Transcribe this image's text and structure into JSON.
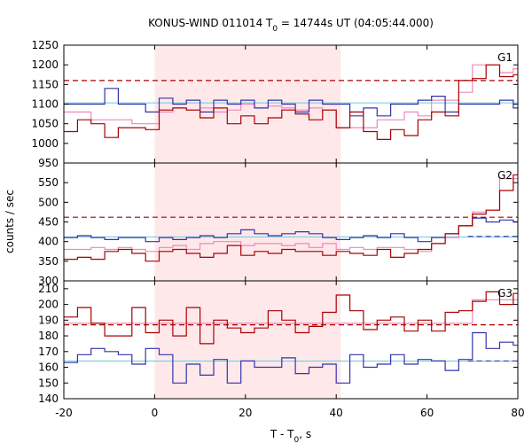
{
  "chart_data": {
    "type": "line",
    "title": "KONUS-WIND 011014 T",
    "title_sub": "0",
    "title_rest": " = 14744s UT (04:05:44.000)",
    "xlabel": "T - T",
    "xlabel_sub": "0",
    "xlabel_rest": ", s",
    "ylabel": "counts / sec",
    "xlim": [
      -20,
      80
    ],
    "xticks": [
      "-20",
      "0",
      "20",
      "40",
      "60",
      "80"
    ],
    "xtick_values": [
      -20,
      0,
      20,
      40,
      60,
      80
    ],
    "shaded_interval": [
      0,
      41
    ],
    "colors": {
      "shade": "#ffe8ea",
      "red": "#aa0000",
      "blue": "#3333aa",
      "pink": "#ee88bb",
      "cyan": "#66ccdd"
    },
    "panels": [
      {
        "label": "G1",
        "ylim": [
          950,
          1250
        ],
        "yticks": [
          950,
          1000,
          1050,
          1100,
          1150,
          1200,
          1250
        ],
        "red_level": 1160,
        "cyan_level": 1103,
        "x": [
          -20,
          -17,
          -14,
          -11,
          -8,
          -5,
          -2,
          1,
          4,
          7,
          10,
          13,
          16,
          19,
          22,
          25,
          28,
          31,
          34,
          37,
          40,
          43,
          46,
          49,
          52,
          55,
          58,
          61,
          64,
          67,
          70,
          73,
          76,
          79
        ],
        "red": [
          1030,
          1060,
          1050,
          1015,
          1040,
          1040,
          1035,
          1085,
          1090,
          1085,
          1065,
          1090,
          1050,
          1070,
          1050,
          1065,
          1085,
          1075,
          1060,
          1085,
          1040,
          1080,
          1030,
          1010,
          1035,
          1020,
          1060,
          1080,
          1070,
          1160,
          1165,
          1200,
          1170,
          1175
        ],
        "blue": [
          1100,
          1100,
          1100,
          1140,
          1100,
          1100,
          1080,
          1115,
          1100,
          1110,
          1080,
          1110,
          1100,
          1110,
          1090,
          1110,
          1100,
          1080,
          1110,
          1100,
          1100,
          1070,
          1090,
          1070,
          1100,
          1100,
          1110,
          1120,
          1080,
          1100,
          1100,
          1100,
          1110,
          1090
        ],
        "pink": [
          1080,
          1080,
          1060,
          1060,
          1060,
          1050,
          1050,
          1080,
          1090,
          1085,
          1090,
          1080,
          1085,
          1100,
          1090,
          1095,
          1090,
          1085,
          1090,
          1085,
          1040,
          1040,
          1040,
          1060,
          1060,
          1080,
          1070,
          1110,
          1110,
          1130,
          1200,
          1200,
          1180,
          1190
        ]
      },
      {
        "label": "G2",
        "ylim": [
          300,
          600
        ],
        "yticks": [
          300,
          350,
          400,
          450,
          500,
          550
        ],
        "red_level": 462,
        "blue_level": 413,
        "cyan_level": 412,
        "x": [
          -20,
          -17,
          -14,
          -11,
          -8,
          -5,
          -2,
          1,
          4,
          7,
          10,
          13,
          16,
          19,
          22,
          25,
          28,
          31,
          34,
          37,
          40,
          43,
          46,
          49,
          52,
          55,
          58,
          61,
          64,
          67,
          70,
          73,
          76,
          79
        ],
        "red": [
          355,
          360,
          355,
          375,
          380,
          370,
          350,
          375,
          380,
          370,
          360,
          370,
          390,
          365,
          375,
          370,
          380,
          375,
          375,
          365,
          375,
          370,
          365,
          380,
          360,
          370,
          380,
          395,
          420,
          440,
          470,
          480,
          530,
          570
        ],
        "blue": [
          410,
          415,
          410,
          405,
          410,
          410,
          400,
          410,
          405,
          410,
          415,
          410,
          420,
          430,
          420,
          415,
          420,
          425,
          420,
          410,
          405,
          410,
          415,
          410,
          420,
          410,
          400,
          410,
          420,
          440,
          460,
          450,
          455,
          450
        ],
        "pink": [
          380,
          380,
          385,
          380,
          385,
          380,
          375,
          385,
          390,
          380,
          395,
          400,
          400,
          390,
          395,
          395,
          390,
          395,
          385,
          395,
          380,
          385,
          380,
          385,
          385,
          380,
          375,
          395,
          410,
          440,
          475,
          480,
          560,
          560
        ]
      },
      {
        "label": "G3",
        "ylim": [
          140,
          215
        ],
        "yticks": [
          140,
          150,
          160,
          170,
          180,
          190,
          200,
          210
        ],
        "red_level": 187,
        "blue_level": 164,
        "cyan_level": 164,
        "x": [
          -20,
          -17,
          -14,
          -11,
          -8,
          -5,
          -2,
          1,
          4,
          7,
          10,
          13,
          16,
          19,
          22,
          25,
          28,
          31,
          34,
          37,
          40,
          43,
          46,
          49,
          52,
          55,
          58,
          61,
          64,
          67,
          70,
          73,
          76,
          79
        ],
        "red": [
          192,
          198,
          188,
          180,
          180,
          198,
          182,
          190,
          180,
          198,
          175,
          190,
          185,
          182,
          185,
          196,
          190,
          182,
          186,
          195,
          206,
          196,
          184,
          190,
          192,
          183,
          190,
          183,
          195,
          196,
          202,
          208,
          200,
          207
        ],
        "blue": [
          163,
          168,
          172,
          170,
          168,
          162,
          172,
          168,
          150,
          162,
          155,
          165,
          150,
          164,
          160,
          160,
          166,
          156,
          160,
          162,
          150,
          168,
          160,
          162,
          168,
          162,
          165,
          164,
          158,
          165,
          182,
          172,
          176,
          174
        ],
        "pink": [
          188,
          188,
          188,
          188,
          188,
          188,
          188,
          188,
          188,
          188,
          188,
          188,
          188,
          188,
          188,
          188,
          188,
          188,
          188,
          188,
          188,
          188,
          188,
          188,
          188,
          188,
          188,
          188,
          188,
          188,
          203,
          203,
          203,
          203
        ]
      }
    ]
  }
}
